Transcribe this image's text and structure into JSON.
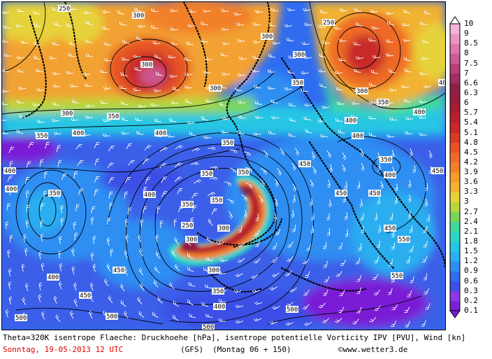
{
  "legend": {
    "levels": [
      "0.1",
      "0.2",
      "0.3",
      "0.6",
      "0.9",
      "1.2",
      "1.5",
      "1.8",
      "2.1",
      "2.4",
      "2.7",
      "3",
      "3.3",
      "3.6",
      "3.9",
      "4.2",
      "4.5",
      "4.8",
      "5.1",
      "5.4",
      "5.7",
      "6",
      "6.3",
      "6.6",
      "7",
      "7.5",
      "8",
      "8.5",
      "9",
      "10"
    ],
    "colors": [
      "#7a1fd6",
      "#8a3ae8",
      "#3b4fe6",
      "#2f6cf0",
      "#2e8ef2",
      "#29aef0",
      "#27c6e4",
      "#2fd6c6",
      "#43d99a",
      "#7ad65a",
      "#b8d63e",
      "#e6d23a",
      "#f2b232",
      "#f59a2e",
      "#f2802a",
      "#ee6a28",
      "#e65426",
      "#d83c26",
      "#c82a2a",
      "#b8222e",
      "#a41e34",
      "#961c3c",
      "#8e2046",
      "#a02e60",
      "#b8407a",
      "#cc5a94",
      "#de76ae",
      "#ea94c4",
      "#f2b4d8",
      "#ffffff"
    ]
  },
  "map": {
    "pressure_labels": [
      "250",
      "300",
      "350",
      "400",
      "450",
      "500",
      "550"
    ]
  },
  "caption": {
    "line1": "Theta=320K isentrope Flaeche: Druckhoehe [hPa], isentrope potentielle Vorticity IPV [PVU], Wind [kn]",
    "date": "Sonntag, 19-05-2013  12 UTC",
    "model": "(GFS)",
    "run": "(Montag 06 + 150)",
    "copyright": "©www.wetter3.de"
  }
}
